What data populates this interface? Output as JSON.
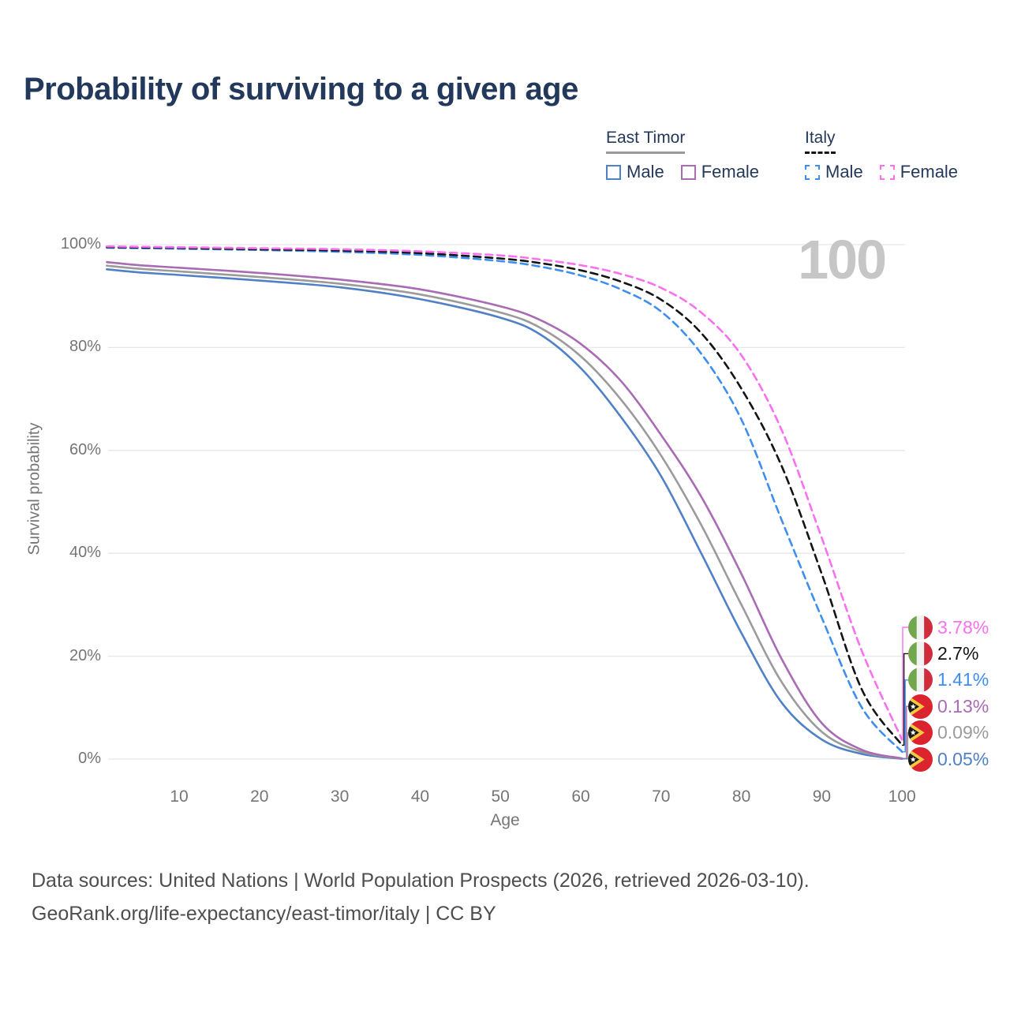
{
  "title": "Probability of surviving to a given age",
  "watermark": "100",
  "legend": {
    "groups": [
      {
        "label": "East Timor",
        "line_style": "solid",
        "underline_color": "#9a9a9a",
        "items": [
          {
            "label": "Male",
            "color": "#5080c6"
          },
          {
            "label": "Female",
            "color": "#a96bb4"
          }
        ]
      },
      {
        "label": "Italy",
        "line_style": "dashed",
        "underline_color": "#141414",
        "items": [
          {
            "label": "Male",
            "color": "#3e8ef0"
          },
          {
            "label": "Female",
            "color": "#fb70f0"
          }
        ]
      }
    ]
  },
  "chart_data": {
    "type": "line",
    "xlabel": "Age",
    "ylabel": "Survival probability",
    "xlim": [
      0,
      100
    ],
    "ylim": [
      0,
      100
    ],
    "grid": "horizontal",
    "grid_color": "#e7e7e7",
    "x_ticks": [
      10,
      20,
      30,
      40,
      50,
      60,
      70,
      80,
      90,
      100
    ],
    "x_tick_labels": [
      "10",
      "20",
      "30",
      "40",
      "50",
      "60",
      "70",
      "80",
      "90",
      "100"
    ],
    "y_ticks": [
      0,
      20,
      40,
      60,
      80,
      100
    ],
    "y_tick_labels": [
      "0%",
      "20%",
      "40%",
      "60%",
      "80%",
      "100%"
    ],
    "legend_position": "top-right",
    "series": [
      {
        "id": "italy-female",
        "country": "Italy",
        "sex": "Female",
        "flag": "italy",
        "color": "#fb70f0",
        "dash": true,
        "end_value": 3.78,
        "end_label": "3.78%",
        "points": [
          [
            1,
            99.65
          ],
          [
            10,
            99.5
          ],
          [
            20,
            99.3
          ],
          [
            30,
            99.1
          ],
          [
            40,
            98.7
          ],
          [
            50,
            97.9
          ],
          [
            55,
            97.1
          ],
          [
            60,
            96.0
          ],
          [
            65,
            94.3
          ],
          [
            70,
            91.6
          ],
          [
            75,
            86.8
          ],
          [
            80,
            78.5
          ],
          [
            85,
            64.0
          ],
          [
            90,
            43.0
          ],
          [
            95,
            21.0
          ],
          [
            100,
            3.78
          ]
        ]
      },
      {
        "id": "italy-both",
        "country": "Italy",
        "sex": "Both sexes",
        "flag": "italy",
        "color": "#141414",
        "dash": true,
        "end_value": 2.7,
        "end_label": "2.7%",
        "points": [
          [
            1,
            99.5
          ],
          [
            10,
            99.35
          ],
          [
            20,
            99.1
          ],
          [
            30,
            98.85
          ],
          [
            40,
            98.35
          ],
          [
            50,
            97.3
          ],
          [
            55,
            96.4
          ],
          [
            60,
            95.0
          ],
          [
            65,
            92.8
          ],
          [
            70,
            89.3
          ],
          [
            75,
            82.8
          ],
          [
            80,
            72.0
          ],
          [
            85,
            57.0
          ],
          [
            90,
            36.0
          ],
          [
            95,
            13.5
          ],
          [
            100,
            2.7
          ]
        ]
      },
      {
        "id": "italy-male",
        "country": "Italy",
        "sex": "Male",
        "flag": "italy",
        "color": "#3e8ef0",
        "dash": true,
        "end_value": 1.41,
        "end_label": "1.41%",
        "points": [
          [
            1,
            99.4
          ],
          [
            10,
            99.2
          ],
          [
            20,
            98.95
          ],
          [
            30,
            98.6
          ],
          [
            40,
            98.0
          ],
          [
            50,
            96.8
          ],
          [
            55,
            95.7
          ],
          [
            60,
            94.0
          ],
          [
            65,
            91.3
          ],
          [
            70,
            87.0
          ],
          [
            75,
            78.8
          ],
          [
            80,
            66.0
          ],
          [
            85,
            46.5
          ],
          [
            90,
            27.5
          ],
          [
            95,
            10.0
          ],
          [
            100,
            1.41
          ]
        ]
      },
      {
        "id": "east-timor-female",
        "country": "East Timor",
        "sex": "Female",
        "flag": "east-timor",
        "color": "#a96bb4",
        "dash": false,
        "end_value": 0.13,
        "end_label": "0.13%",
        "points": [
          [
            1,
            96.6
          ],
          [
            5,
            96.0
          ],
          [
            10,
            95.5
          ],
          [
            20,
            94.5
          ],
          [
            30,
            93.2
          ],
          [
            40,
            91.3
          ],
          [
            50,
            88.0
          ],
          [
            55,
            85.3
          ],
          [
            60,
            80.7
          ],
          [
            65,
            73.5
          ],
          [
            70,
            63.0
          ],
          [
            75,
            51.0
          ],
          [
            80,
            36.0
          ],
          [
            85,
            19.5
          ],
          [
            90,
            7.0
          ],
          [
            95,
            1.8
          ],
          [
            100,
            0.13
          ]
        ]
      },
      {
        "id": "east-timor-both",
        "country": "East Timor",
        "sex": "Both sexes",
        "flag": "east-timor",
        "color": "#9b9b9b",
        "dash": false,
        "end_value": 0.09,
        "end_label": "0.09%",
        "points": [
          [
            1,
            95.9
          ],
          [
            5,
            95.3
          ],
          [
            10,
            94.8
          ],
          [
            20,
            93.7
          ],
          [
            30,
            92.4
          ],
          [
            40,
            90.3
          ],
          [
            50,
            86.8
          ],
          [
            55,
            83.8
          ],
          [
            60,
            78.3
          ],
          [
            65,
            69.9
          ],
          [
            70,
            59.0
          ],
          [
            75,
            45.5
          ],
          [
            80,
            30.0
          ],
          [
            85,
            15.0
          ],
          [
            90,
            5.3
          ],
          [
            95,
            1.4
          ],
          [
            100,
            0.09
          ]
        ]
      },
      {
        "id": "east-timor-male",
        "country": "East Timor",
        "sex": "Male",
        "flag": "east-timor",
        "color": "#5080c6",
        "dash": false,
        "end_value": 0.05,
        "end_label": "0.05%",
        "points": [
          [
            1,
            95.2
          ],
          [
            5,
            94.6
          ],
          [
            10,
            94.1
          ],
          [
            20,
            93.0
          ],
          [
            30,
            91.7
          ],
          [
            40,
            89.4
          ],
          [
            50,
            85.8
          ],
          [
            55,
            82.5
          ],
          [
            60,
            76.0
          ],
          [
            65,
            66.5
          ],
          [
            70,
            55.0
          ],
          [
            75,
            40.0
          ],
          [
            80,
            24.5
          ],
          [
            85,
            11.0
          ],
          [
            90,
            3.8
          ],
          [
            95,
            1.0
          ],
          [
            100,
            0.05
          ]
        ]
      }
    ]
  },
  "footer": {
    "line1": "Data sources: United Nations | World Population Prospects (2026, retrieved 2026-03-10).",
    "line2": "GeoRank.org/life-expectancy/east-timor/italy | CC BY"
  }
}
